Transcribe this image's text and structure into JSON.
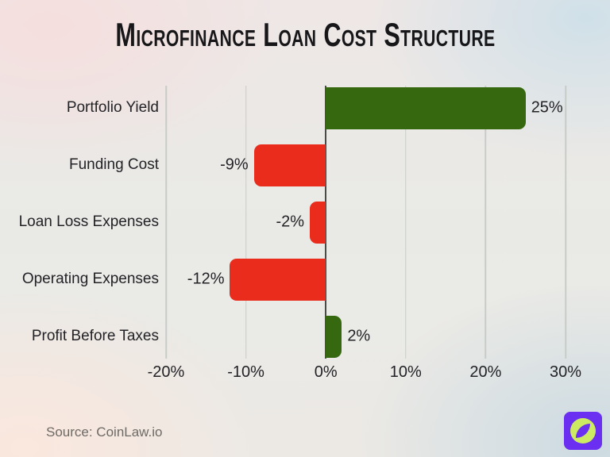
{
  "title": "Microfinance Loan Cost Structure",
  "source": "Source: CoinLaw.io",
  "colors": {
    "positive_bar": "#35680f",
    "negative_bar": "#ea2c1d",
    "gridline": "#c7ccc7",
    "zero_line": "#4a4a47",
    "title_text": "#17171a",
    "label_text": "#232327",
    "source_text": "#6e6a66",
    "logo_purple": "#6a2ff0",
    "logo_lime": "#cceb63"
  },
  "logo": {
    "icon": "compass-icon"
  },
  "chart_data": {
    "type": "bar",
    "orientation": "horizontal",
    "title": "Microfinance Loan Cost Structure",
    "categories": [
      "Portfolio Yield",
      "Funding Cost",
      "Loan Loss Expenses",
      "Operating Expenses",
      "Profit Before Taxes"
    ],
    "values": [
      25,
      -9,
      -2,
      -12,
      2
    ],
    "value_labels": [
      "25%",
      "-9%",
      "-2%",
      "-12%",
      "2%"
    ],
    "xlabel": "",
    "ylabel": "",
    "xlim": [
      -20,
      30
    ],
    "xticks": [
      -20,
      -10,
      0,
      10,
      20,
      30
    ],
    "xtick_labels": [
      "-20%",
      "-10%",
      "0%",
      "10%",
      "20%",
      "30%"
    ],
    "grid": true,
    "legend": false,
    "bar_color_rule": "positive=green, negative=red"
  }
}
